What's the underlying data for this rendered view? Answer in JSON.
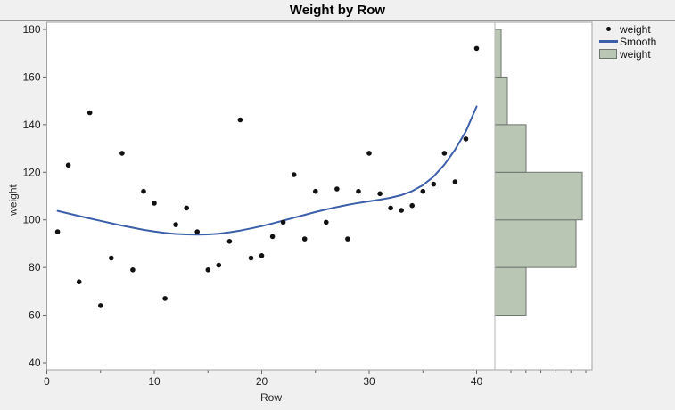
{
  "window": {
    "title": "Weight by Row"
  },
  "chart_data": {
    "type": "scatter",
    "title": "Weight by Row",
    "xlabel": "Row",
    "ylabel": "weight",
    "xlim": [
      0,
      41.7
    ],
    "ylim": [
      37,
      183
    ],
    "x_major_ticks": [
      0,
      10,
      20,
      30,
      40
    ],
    "x_minor_ticks": [
      5,
      15,
      25,
      35
    ],
    "y_major_ticks": [
      40,
      60,
      80,
      100,
      120,
      140,
      160,
      180
    ],
    "grid": false,
    "legend_position": "right",
    "series": [
      {
        "name": "weight",
        "type": "scatter",
        "marker": "dot",
        "x": [
          1,
          2,
          3,
          4,
          5,
          6,
          7,
          8,
          9,
          10,
          11,
          12,
          13,
          14,
          15,
          16,
          17,
          18,
          19,
          20,
          21,
          22,
          23,
          24,
          25,
          26,
          27,
          28,
          29,
          30,
          31,
          32,
          33,
          34,
          35,
          36,
          37,
          38,
          39,
          40
        ],
        "y": [
          95,
          123,
          74,
          145,
          64,
          84,
          128,
          79,
          112,
          107,
          67,
          98,
          105,
          95,
          79,
          81,
          91,
          142,
          84,
          85,
          93,
          99,
          119,
          92,
          112,
          99,
          113,
          92,
          112,
          128,
          111,
          105,
          104,
          106,
          112,
          115,
          128,
          116,
          134,
          172
        ]
      },
      {
        "name": "Smooth",
        "type": "line",
        "x": [
          1,
          2,
          3,
          4,
          5,
          6,
          7,
          8,
          9,
          10,
          11,
          12,
          13,
          14,
          15,
          16,
          17,
          18,
          19,
          20,
          21,
          22,
          23,
          24,
          25,
          26,
          27,
          28,
          29,
          30,
          31,
          32,
          33,
          34,
          35,
          36,
          37,
          38,
          39,
          40
        ],
        "y": [
          103.8,
          102.7,
          101.6,
          100.6,
          99.6,
          98.6,
          97.6,
          96.7,
          95.8,
          95.1,
          94.5,
          94.1,
          93.9,
          93.8,
          93.9,
          94.2,
          94.8,
          95.5,
          96.4,
          97.4,
          98.5,
          99.7,
          100.9,
          102.1,
          103.3,
          104.4,
          105.4,
          106.3,
          107.1,
          107.8,
          108.5,
          109.3,
          110.4,
          112.1,
          114.6,
          118.2,
          123.2,
          129.5,
          137.2,
          147.6
        ]
      }
    ],
    "histogram": {
      "name": "weight",
      "orientation": "horizontal",
      "bin_edges": [
        60,
        80,
        100,
        120,
        140,
        160,
        180
      ],
      "counts": [
        5,
        13,
        14,
        5,
        2,
        1
      ]
    }
  },
  "legend": {
    "items": [
      {
        "marker": "dot",
        "label": "weight"
      },
      {
        "marker": "line",
        "label": "Smooth"
      },
      {
        "marker": "box",
        "label": "weight"
      }
    ]
  },
  "colors": {
    "point": "#111111",
    "smooth_line": "#3b5fa8",
    "histogram_fill": "#b9c6b4",
    "histogram_border": "#6e766e",
    "frame": "#a3a3a3",
    "separator": "#b5b5b5",
    "tick": "#606060",
    "tick_label": "#1d1d1d",
    "background": "#f0f0f0"
  }
}
